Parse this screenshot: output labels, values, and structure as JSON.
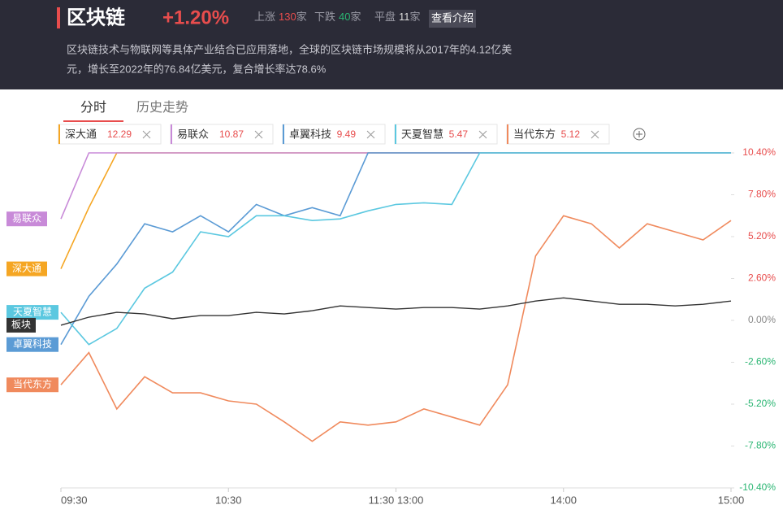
{
  "header": {
    "title": "区块链",
    "change": "+1.20%",
    "stats": [
      {
        "label": "上涨",
        "count": "130",
        "unit": "家"
      },
      {
        "label": "下跌",
        "count": "40",
        "unit": "家"
      },
      {
        "label": "平盘",
        "count": "11",
        "unit": "家"
      }
    ],
    "button": "查看介绍",
    "description": [
      "区块链技术与物联网等具体产业结合已应用落地，全球的区块链市场规模将从2017年的4.12亿美",
      "元，增长至2022年的76.84亿美元，复合增长率达78.6%"
    ]
  },
  "tabs": [
    "分时",
    "历史走势"
  ],
  "chart_data": {
    "type": "line",
    "x": [
      "09:30",
      "09:40",
      "09:50",
      "10:00",
      "10:10",
      "10:20",
      "10:30",
      "10:40",
      "10:50",
      "11:00",
      "11:10",
      "11:20",
      "11:30",
      "13:10",
      "13:20",
      "13:30",
      "13:40",
      "13:50",
      "14:00",
      "14:10",
      "14:20",
      "14:30",
      "14:40",
      "14:50",
      "15:00"
    ],
    "xticks": [
      "09:30",
      "10:30",
      "11:30 13:00",
      "14:00",
      "15:00"
    ],
    "ylim": [
      -10.4,
      10.4
    ],
    "yticks": [
      {
        "value": 10.4,
        "label": "10.40%"
      },
      {
        "value": 7.8,
        "label": "7.80%"
      },
      {
        "value": 5.2,
        "label": "5.20%"
      },
      {
        "value": 2.6,
        "label": "2.60%"
      },
      {
        "value": 0,
        "label": "0.00%"
      },
      {
        "value": -2.6,
        "label": "-2.60%"
      },
      {
        "value": -5.2,
        "label": "-5.20%"
      },
      {
        "value": -7.8,
        "label": "-7.80%"
      },
      {
        "value": -10.4,
        "label": "-10.40%"
      }
    ],
    "series": [
      {
        "name": "深大通",
        "price": "12.29",
        "color": "#f5a623",
        "values": [
          3.2,
          7.0,
          10.4,
          10.4,
          10.4,
          10.4,
          10.4,
          10.4,
          10.4,
          10.4,
          10.4,
          10.4,
          10.4,
          10.4,
          10.4,
          10.4,
          10.4,
          10.4,
          10.4,
          10.4,
          10.4,
          10.4,
          10.4,
          10.4,
          10.4
        ]
      },
      {
        "name": "易联众",
        "price": "10.87",
        "color": "#c88ad8",
        "values": [
          6.3,
          10.4,
          10.4,
          10.4,
          10.4,
          10.4,
          10.4,
          10.4,
          10.4,
          10.4,
          10.4,
          10.4,
          10.4,
          10.4,
          10.4,
          10.4,
          10.4,
          10.4,
          10.4,
          10.4,
          10.4,
          10.4,
          10.4,
          10.4,
          10.4
        ]
      },
      {
        "name": "卓翼科技",
        "price": "9.49",
        "color": "#5b9bd5",
        "values": [
          -1.5,
          1.5,
          3.5,
          6.0,
          5.5,
          6.5,
          5.5,
          7.2,
          6.5,
          7.0,
          6.5,
          10.4,
          10.4,
          10.4,
          10.4,
          10.4,
          10.4,
          10.4,
          10.4,
          10.4,
          10.4,
          10.4,
          10.4,
          10.4,
          10.4
        ]
      },
      {
        "name": "天夏智慧",
        "price": "5.47",
        "color": "#5bc8e0",
        "values": [
          0.5,
          -1.5,
          -0.5,
          2.0,
          3.0,
          5.5,
          5.2,
          6.5,
          6.5,
          6.2,
          6.3,
          6.8,
          7.2,
          7.3,
          7.2,
          10.4,
          10.4,
          10.4,
          10.4,
          10.4,
          10.4,
          10.4,
          10.4,
          10.4,
          10.4
        ]
      },
      {
        "name": "当代东方",
        "price": "5.12",
        "color": "#f08a5d",
        "values": [
          -4.0,
          -2.0,
          -5.5,
          -3.5,
          -4.5,
          -4.5,
          -5.0,
          -5.2,
          -6.3,
          -7.5,
          -6.3,
          -6.5,
          -6.3,
          -5.5,
          -6.0,
          -6.5,
          -4.0,
          4.0,
          6.5,
          6.0,
          4.5,
          6.0,
          5.5,
          5.0,
          6.2
        ]
      },
      {
        "name": "板块",
        "color": "#333333",
        "values": [
          -0.3,
          0.2,
          0.5,
          0.4,
          0.1,
          0.3,
          0.3,
          0.5,
          0.4,
          0.6,
          0.9,
          0.8,
          0.7,
          0.8,
          0.8,
          0.7,
          0.9,
          1.2,
          1.4,
          1.2,
          1.0,
          1.0,
          0.9,
          1.0,
          1.2
        ]
      }
    ]
  }
}
